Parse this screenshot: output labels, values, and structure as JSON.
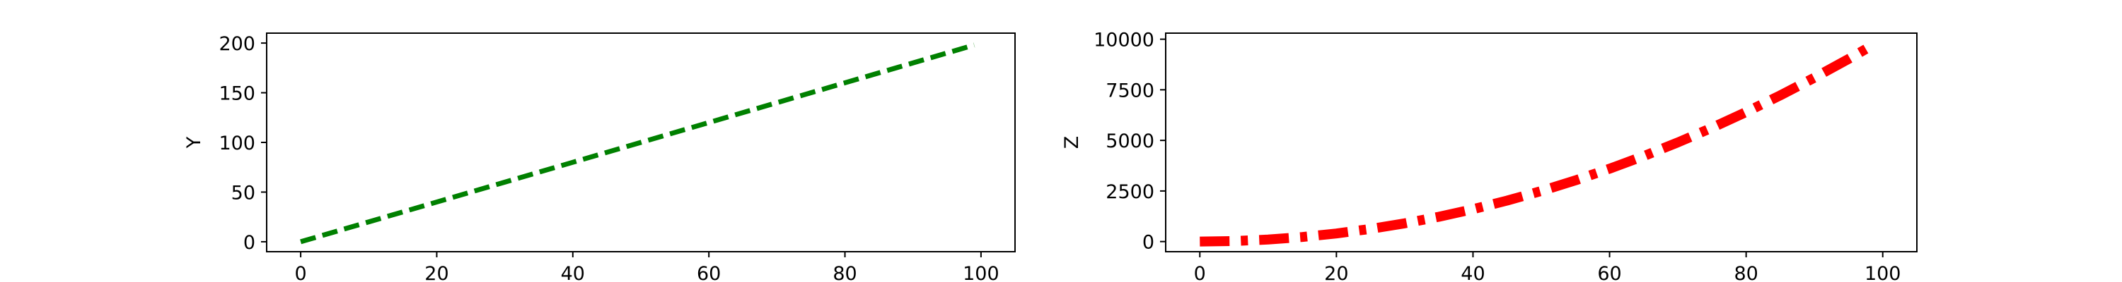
{
  "chart_data": [
    {
      "type": "line",
      "xlabel": "",
      "ylabel": "Y",
      "xlim": [
        -5,
        105
      ],
      "ylim": [
        -10,
        210
      ],
      "xticks": [
        0,
        20,
        40,
        60,
        80,
        100
      ],
      "yticks": [
        0,
        50,
        100,
        150,
        200
      ],
      "x_tick_labels": [
        "0",
        "20",
        "40",
        "60",
        "80",
        "100"
      ],
      "y_tick_labels": [
        "0",
        "50",
        "100",
        "150",
        "200"
      ],
      "grid": false,
      "series": [
        {
          "color": "#008000",
          "linestyle": "dashed",
          "x": [
            0,
            10,
            20,
            30,
            40,
            50,
            60,
            70,
            80,
            90,
            99
          ],
          "values": [
            0,
            20,
            40,
            60,
            80,
            100,
            120,
            140,
            160,
            180,
            198
          ]
        }
      ]
    },
    {
      "type": "line",
      "xlabel": "",
      "ylabel": "Z",
      "xlim": [
        -5,
        105
      ],
      "ylim": [
        -500,
        10300
      ],
      "xticks": [
        0,
        20,
        40,
        60,
        80,
        100
      ],
      "yticks": [
        0,
        2500,
        5000,
        7500,
        10000
      ],
      "x_tick_labels": [
        "0",
        "20",
        "40",
        "60",
        "80",
        "100"
      ],
      "y_tick_labels": [
        "0",
        "2500",
        "5000",
        "7500",
        "10000"
      ],
      "grid": false,
      "series": [
        {
          "color": "#ff0000",
          "linestyle": "dashdot",
          "x": [
            0,
            5,
            10,
            15,
            20,
            25,
            30,
            35,
            40,
            45,
            50,
            55,
            60,
            65,
            70,
            75,
            80,
            85,
            90,
            95,
            98
          ],
          "values": [
            0,
            25,
            100,
            225,
            400,
            625,
            900,
            1225,
            1600,
            2025,
            2500,
            3025,
            3600,
            4225,
            4900,
            5625,
            6400,
            7225,
            8100,
            9025,
            9604
          ]
        }
      ]
    }
  ]
}
